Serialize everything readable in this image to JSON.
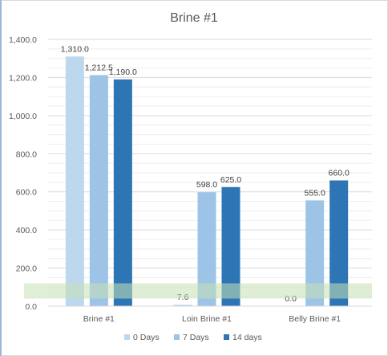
{
  "chart_data": {
    "type": "bar",
    "title": "Brine #1",
    "categories": [
      "Brine #1",
      "Loin Brine #1",
      "Belly Brine #1"
    ],
    "series": [
      {
        "name": "0 Days",
        "values": [
          1310.0,
          7.6,
          0.0
        ],
        "labels": [
          "1,310.0",
          "7.6",
          "0.0"
        ],
        "color": "#bdd7ee"
      },
      {
        "name": "7 Days",
        "values": [
          1212.5,
          598.0,
          555.0
        ],
        "labels": [
          "1,212.5",
          "598.0",
          "555.0"
        ],
        "color": "#9dc3e6"
      },
      {
        "name": "14 days",
        "values": [
          1190.0,
          625.0,
          660.0
        ],
        "labels": [
          "1,190.0",
          "625.0",
          "660.0"
        ],
        "color": "#2e75b6"
      }
    ],
    "ylim": [
      0,
      1400
    ],
    "yticks": [
      "0.0",
      "200.0",
      "400.0",
      "600.0",
      "800.0",
      "1,000.0",
      "1,200.0",
      "1,400.0"
    ],
    "ytick_values": [
      0,
      200,
      400,
      600,
      800,
      1000,
      1200,
      1400
    ],
    "minor_step": 50,
    "band": {
      "from": 40,
      "to": 120,
      "color": "#c6e0b4"
    },
    "legend_position": "bottom",
    "grid": true
  }
}
